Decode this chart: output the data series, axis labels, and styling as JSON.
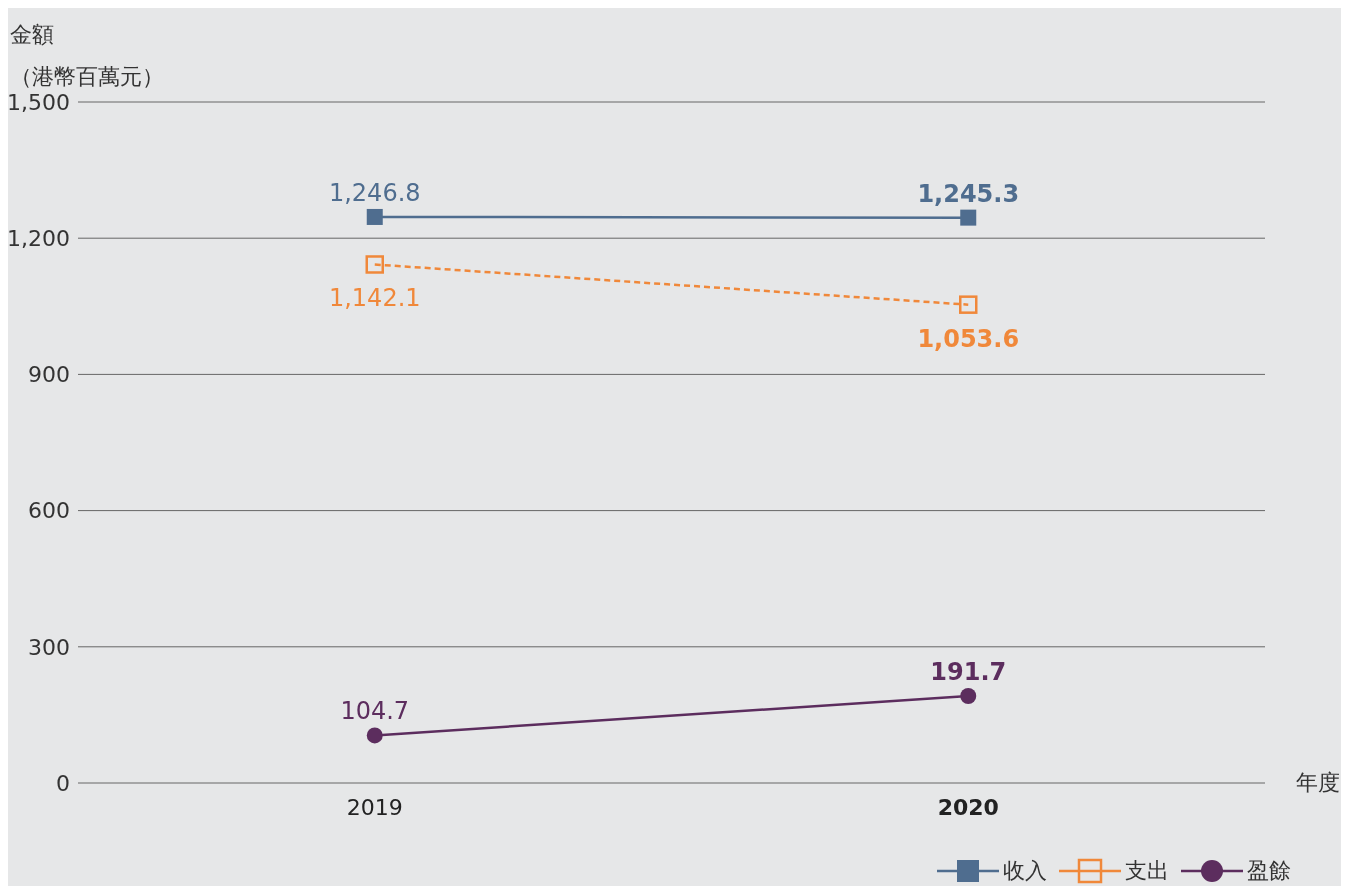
{
  "chart_data": {
    "type": "line",
    "ylabel": "金額（港幣百萬元）",
    "xlabel": "年度",
    "categories": [
      "2019",
      "2020"
    ],
    "series": [
      {
        "name": "收入",
        "color": "#4f6d8f",
        "values": [
          1246.8,
          1245.3
        ],
        "value_labels": [
          "1,246.8",
          "1,245.3"
        ],
        "marker": "square",
        "line_style": "solid"
      },
      {
        "name": "支出",
        "color": "#f0883a",
        "values": [
          1142.1,
          1053.6
        ],
        "value_labels": [
          "1,142.1",
          "1,053.6"
        ],
        "marker": "square",
        "line_style": "dashed"
      },
      {
        "name": "盈餘",
        "color": "#5c2d5e",
        "values": [
          104.7,
          191.7
        ],
        "value_labels": [
          "104.7",
          "191.7"
        ],
        "marker": "circle",
        "line_style": "solid"
      }
    ],
    "ylim": [
      0,
      1500
    ],
    "yticks": [
      0,
      300,
      600,
      900,
      {
        "value": 1200,
        "label": "1,200"
      },
      {
        "value": 1500,
        "label": "1,500"
      }
    ],
    "grid": "y",
    "legend": "bottom right"
  }
}
